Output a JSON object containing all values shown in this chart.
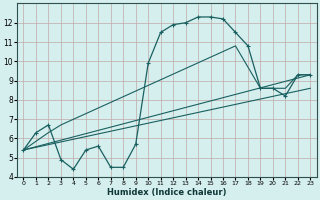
{
  "xlabel": "Humidex (Indice chaleur)",
  "bg_color": "#d5eeee",
  "grid_color": "#c0a8a8",
  "line_color": "#1a6060",
  "xlim": [
    -0.5,
    23.5
  ],
  "ylim": [
    4,
    13
  ],
  "xticks": [
    0,
    1,
    2,
    3,
    4,
    5,
    6,
    7,
    8,
    9,
    10,
    11,
    12,
    13,
    14,
    15,
    16,
    17,
    18,
    19,
    20,
    21,
    22,
    23
  ],
  "yticks": [
    4,
    5,
    6,
    7,
    8,
    9,
    10,
    11,
    12
  ],
  "curve1_x": [
    0,
    1,
    2,
    3,
    4,
    5,
    6,
    7,
    8,
    9,
    10,
    11,
    12,
    13,
    14,
    15,
    16,
    17,
    18,
    19,
    20,
    21,
    22,
    23
  ],
  "curve1_y": [
    5.4,
    6.3,
    6.7,
    4.9,
    4.4,
    5.4,
    5.6,
    4.5,
    4.5,
    5.7,
    9.9,
    11.5,
    11.9,
    12.0,
    12.3,
    12.3,
    12.2,
    11.5,
    10.8,
    8.6,
    8.6,
    8.2,
    9.3,
    9.3
  ],
  "line2_x": [
    0,
    23
  ],
  "line2_y": [
    5.4,
    8.6
  ],
  "line3_x": [
    0,
    23
  ],
  "line3_y": [
    5.4,
    9.3
  ],
  "line4_x": [
    0,
    2,
    3,
    17,
    19,
    20,
    21,
    22,
    23
  ],
  "line4_y": [
    5.4,
    6.3,
    6.7,
    10.8,
    8.6,
    8.6,
    8.6,
    9.3,
    9.3
  ]
}
